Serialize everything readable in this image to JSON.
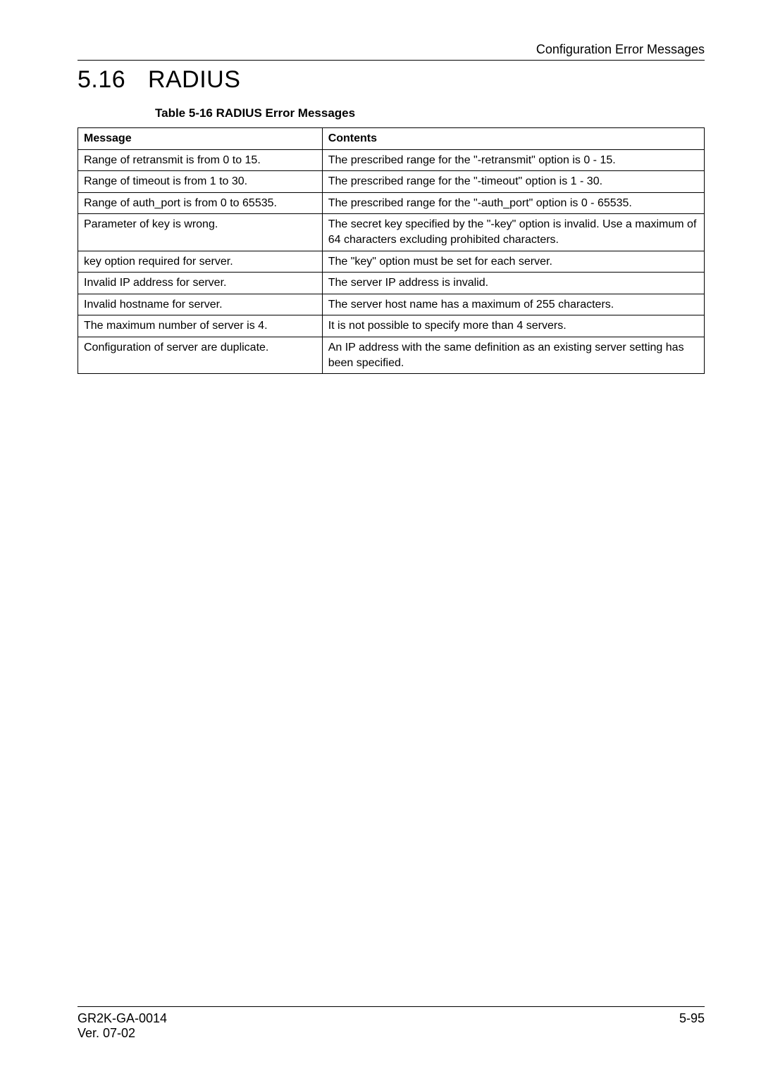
{
  "header": {
    "label": "Configuration Error Messages"
  },
  "section": {
    "number": "5.16",
    "title": "RADIUS"
  },
  "table": {
    "caption": "Table 5-16  RADIUS Error Messages",
    "columns": [
      "Message",
      "Contents"
    ],
    "col_widths_pct": [
      39,
      61
    ],
    "border_color": "#000000",
    "header_font_weight": "bold",
    "cell_font_size_pt": 12,
    "rows": [
      [
        "Range of retransmit is from 0 to 15.",
        "The prescribed range for the \"-retransmit\" option is 0 - 15."
      ],
      [
        "Range of timeout is from 1 to 30.",
        "The prescribed range for the \"-timeout\" option is 1 - 30."
      ],
      [
        "Range of auth_port is from 0 to 65535.",
        "The prescribed range for the \"-auth_port\" option is 0 - 65535."
      ],
      [
        "Parameter of key is wrong.",
        "The secret key specified by the \"-key\" option is invalid.  Use a maximum of 64 characters excluding prohibited characters."
      ],
      [
        "key option required for server.",
        "The \"key\" option must be set for each server."
      ],
      [
        "Invalid IP address for server.",
        "The server IP address is invalid."
      ],
      [
        "Invalid hostname for server.",
        "The server host name has a maximum of 255 characters."
      ],
      [
        "The maximum number of server is 4.",
        "It is not possible to specify more than 4 servers."
      ],
      [
        "Configuration of server are duplicate.",
        "An IP address with the same definition as an existing server setting has been specified."
      ]
    ]
  },
  "footer": {
    "doc_id": "GR2K-GA-0014",
    "version": "Ver. 07-02",
    "page": "5-95"
  },
  "style": {
    "page_bg": "#ffffff",
    "text_color": "#000000",
    "rule_color": "#000000",
    "section_title_fontsize_pt": 26,
    "caption_fontsize_pt": 13,
    "body_fontsize_pt": 12
  }
}
